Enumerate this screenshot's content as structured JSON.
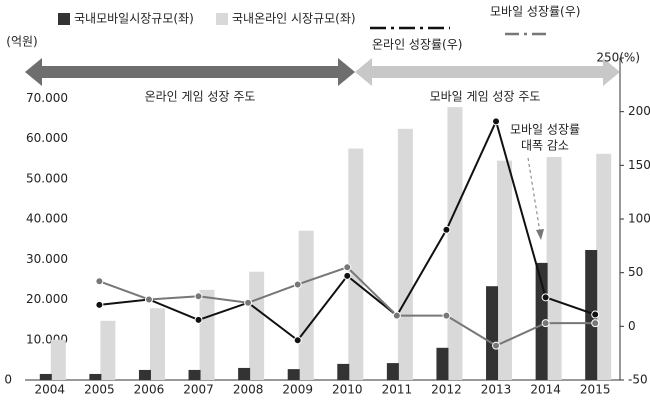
{
  "chart_data": {
    "type": "bar_line",
    "categories": [
      "2004",
      "2005",
      "2006",
      "2007",
      "2008",
      "2009",
      "2010",
      "2011",
      "2012",
      "2013",
      "2014",
      "2015"
    ],
    "series": [
      {
        "name": "국내모바일시장규모(좌)",
        "color": "#333333",
        "kind": "bar",
        "values": [
          1500,
          1500,
          2500,
          2500,
          3000,
          2700,
          4000,
          4200,
          8000,
          23300,
          29100,
          32300
        ]
      },
      {
        "name": "국내온라인 시장규모(좌)",
        "color": "#d9d9d9",
        "kind": "bar",
        "values": [
          10000,
          14700,
          17800,
          22400,
          26900,
          37100,
          57500,
          62400,
          67800,
          54500,
          55400,
          56200
        ]
      },
      {
        "name": "온라인 성장률(우)",
        "color": "#111111",
        "kind": "line",
        "axis": "y2",
        "values": [
          null,
          20,
          25,
          6,
          22,
          -13,
          47,
          10,
          90,
          191,
          27,
          11
        ]
      },
      {
        "name": "모바일 성장률(우)",
        "color": "#777777",
        "kind": "line",
        "axis": "y2",
        "values": [
          null,
          42,
          25,
          28,
          22,
          39,
          55,
          10,
          10,
          -18,
          3,
          3
        ]
      }
    ],
    "y_label": "(억원)",
    "ylim": [
      0,
      80000
    ],
    "yticks": [
      0,
      {
        "value": 10000,
        "label": "10.000"
      },
      {
        "value": 20000,
        "label": "20.000"
      },
      {
        "value": 30000,
        "label": "30.000"
      },
      {
        "value": 40000,
        "label": "40.000"
      },
      {
        "value": 50000,
        "label": "50.000"
      },
      {
        "value": 60000,
        "label": "60.000"
      },
      {
        "value": 70000,
        "label": "70.000"
      }
    ],
    "y2lim": [
      -50,
      250
    ],
    "y2ticks": [
      -50,
      0,
      50,
      100,
      150,
      200,
      {
        "value": 250,
        "label": "250(%)"
      }
    ],
    "period_arrows": [
      "온라인 게임 성장 주도",
      "모바일 게임 성장 주도"
    ],
    "annotation": [
      "모바일 성장률",
      "대폭 감소"
    ]
  }
}
